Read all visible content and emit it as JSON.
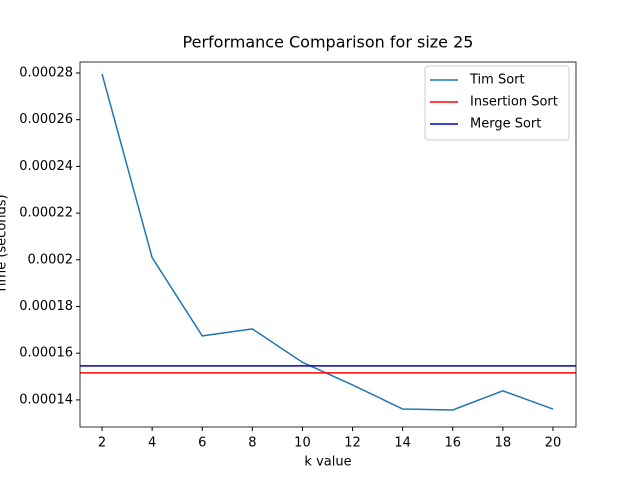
{
  "chart_data": {
    "type": "line",
    "title": "Performance Comparison for size 25",
    "xlabel": "k value",
    "ylabel": "Time (seconds)",
    "x": [
      2,
      4,
      6,
      8,
      10,
      12,
      14,
      16,
      18,
      20
    ],
    "series": [
      {
        "name": "Tim Sort",
        "color": "#1f77b4",
        "values": [
          0.0002796,
          0.0002009,
          0.0001674,
          0.0001704,
          0.0001561,
          0.0001464,
          0.0001361,
          0.0001357,
          0.0001439,
          0.0001361
        ]
      }
    ],
    "hlines": [
      {
        "name": "Insertion Sort",
        "color": "#ff0000",
        "value": 0.0001516
      },
      {
        "name": "Merge Sort",
        "color": "#0000cc",
        "value": 0.0001546
      }
    ],
    "xlim": [
      1.12,
      20.92
    ],
    "ylim": [
      0.0001284,
      0.0002847
    ],
    "xticks": [
      2,
      4,
      6,
      8,
      10,
      12,
      14,
      16,
      18,
      20
    ],
    "yticks": [
      0.00014,
      0.00016,
      0.00018,
      0.0002,
      0.00022,
      0.00024,
      0.00026,
      0.00028
    ],
    "grid": false,
    "legend": "upper-right"
  }
}
